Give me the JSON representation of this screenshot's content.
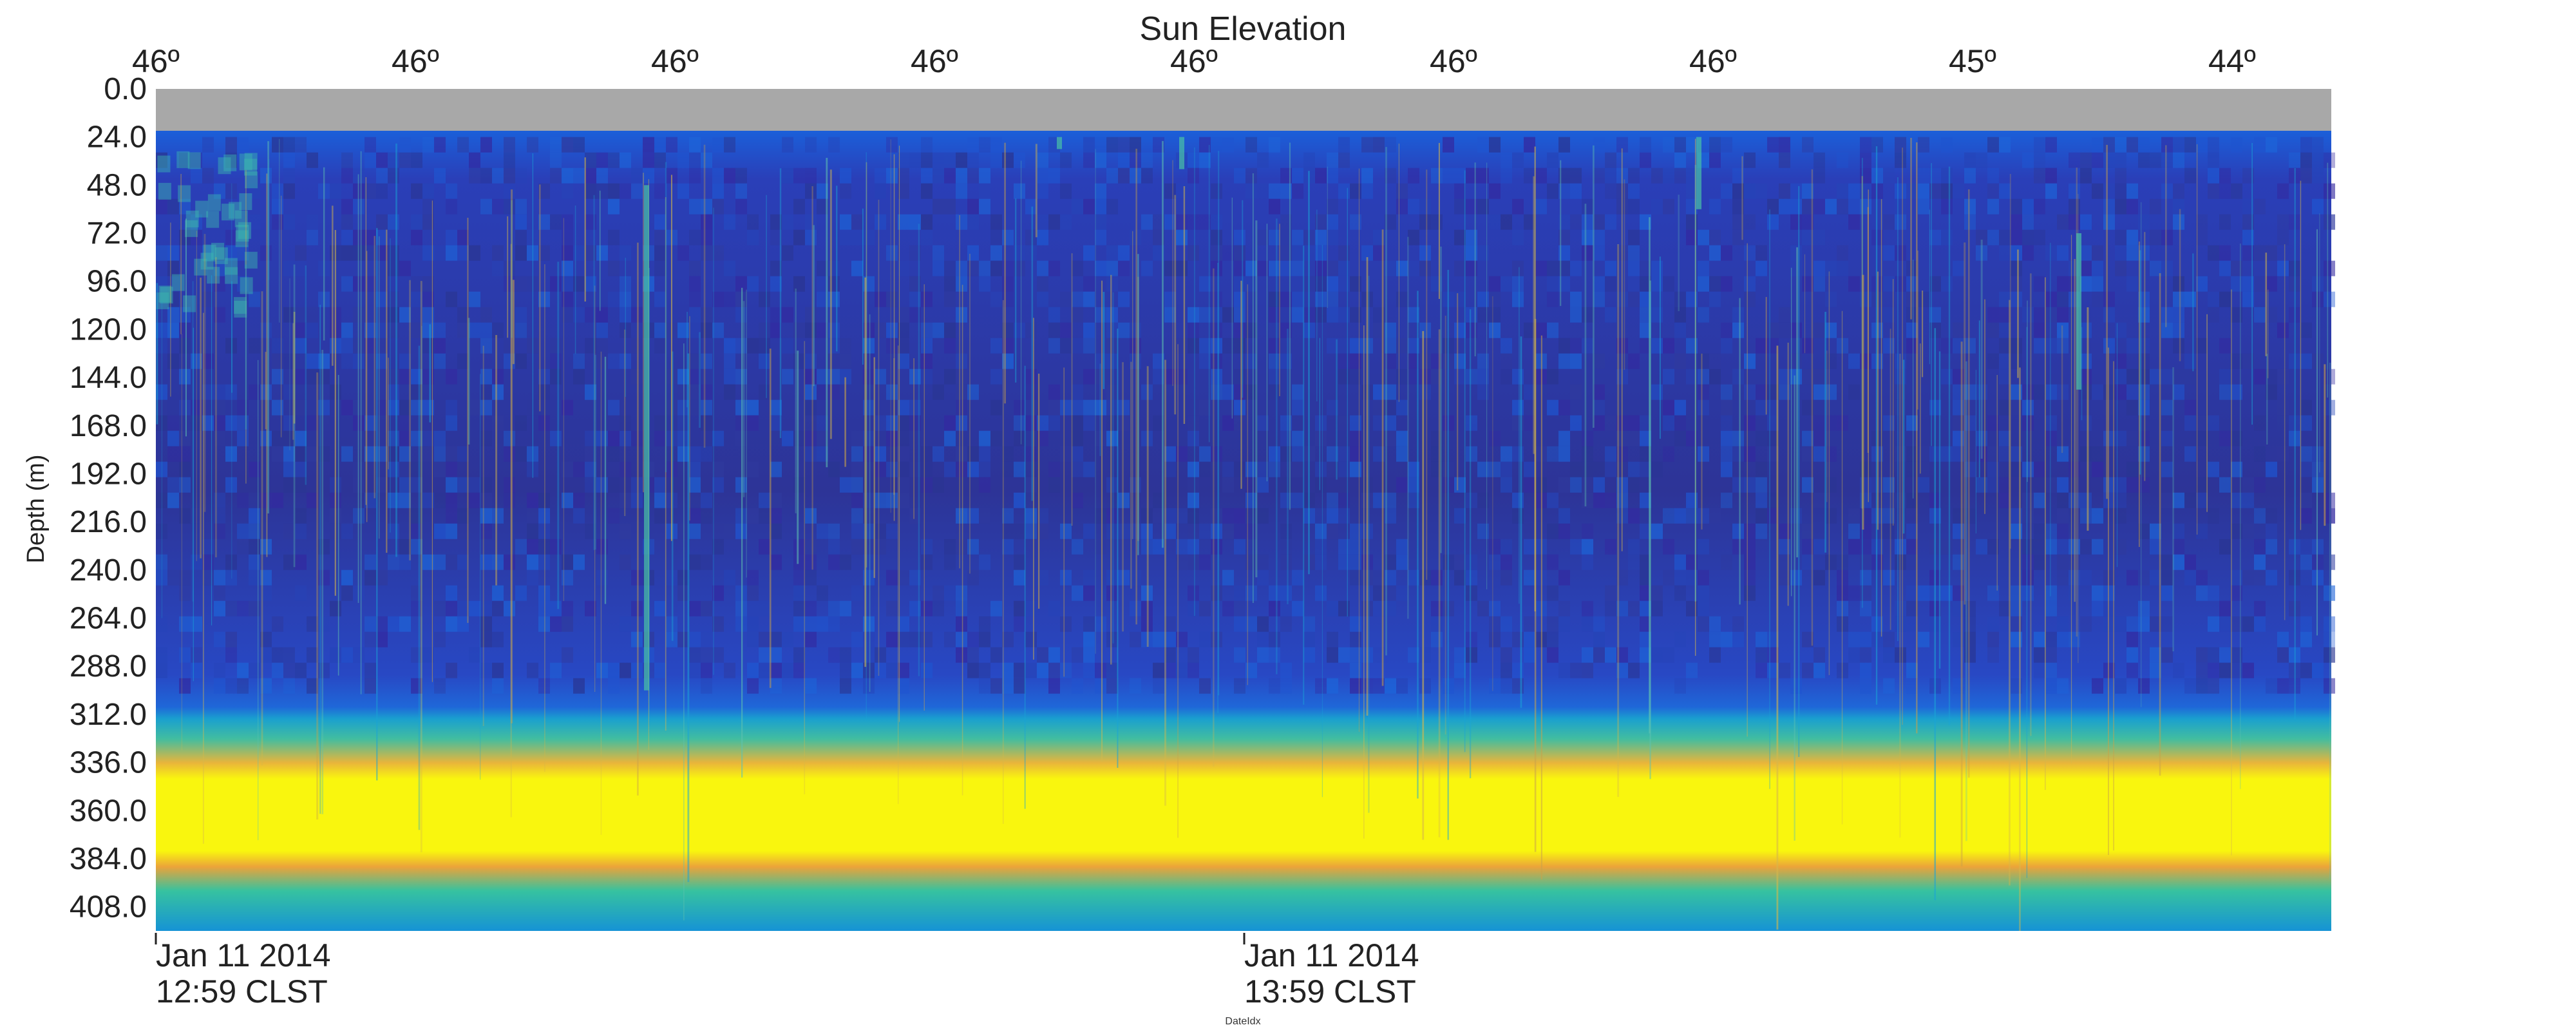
{
  "chart_data": {
    "type": "heatmap",
    "title": "Sun Elevation",
    "ylabel": "Depth (m)",
    "xlabel": "DateIdx",
    "y_ticks": [
      "0.0",
      "24.0",
      "48.0",
      "72.0",
      "96.0",
      "120.0",
      "144.0",
      "168.0",
      "192.0",
      "216.0",
      "240.0",
      "264.0",
      "288.0",
      "312.0",
      "336.0",
      "360.0",
      "384.0",
      "408.0"
    ],
    "ylim": [
      0,
      420
    ],
    "top_axis_ticks": [
      "46º",
      "46º",
      "46º",
      "46º",
      "46º",
      "46º",
      "46º",
      "45º",
      "44º"
    ],
    "x_ticks": [
      {
        "line1": "Jan 11 2014",
        "line2": "12:59 CLST"
      },
      {
        "line1": "Jan 11 2014",
        "line2": "13:59 CLST"
      }
    ],
    "colors": {
      "no_data": "#a8a8a8",
      "low": "#352a87",
      "mid_low": "#1f54d8",
      "mid": "#1592d4",
      "mid_high": "#3fbda9",
      "high_mid": "#f1a63a",
      "high": "#f9f90e"
    },
    "features": {
      "no_data_band_depth": [
        0,
        24
      ],
      "strong_scattering_layer_depth": [
        312,
        400
      ],
      "layer_core_depth": [
        336,
        384
      ]
    }
  }
}
